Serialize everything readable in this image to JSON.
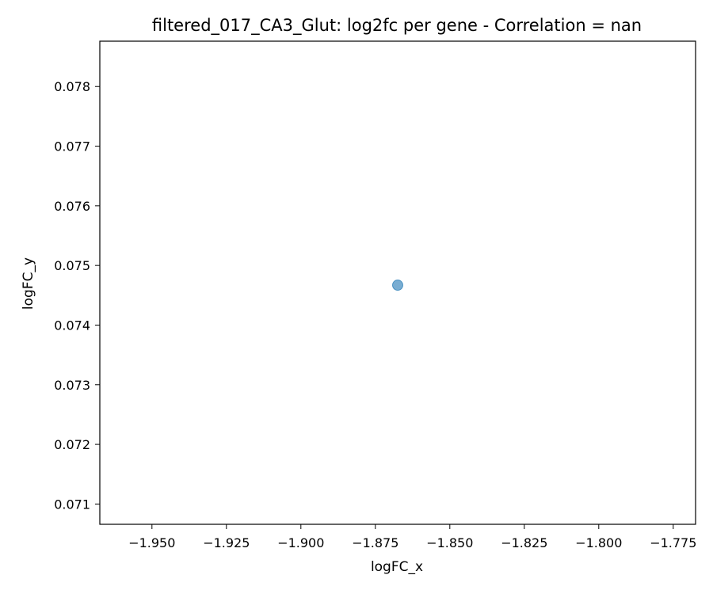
{
  "chart_data": {
    "type": "scatter",
    "title": "filtered_017_CA3_Glut: log2fc per gene - Correlation = nan",
    "xlabel": "logFC_x",
    "ylabel": "logFC_y",
    "xlim": [
      -1.9675,
      -1.7675
    ],
    "ylim": [
      0.07066,
      0.07876
    ],
    "x_ticks": [
      -1.95,
      -1.925,
      -1.9,
      -1.875,
      -1.85,
      -1.825,
      -1.8,
      -1.775
    ],
    "x_tick_labels": [
      "−1.950",
      "−1.925",
      "−1.900",
      "−1.875",
      "−1.850",
      "−1.825",
      "−1.800",
      "−1.775"
    ],
    "y_ticks": [
      0.071,
      0.072,
      0.073,
      0.074,
      0.075,
      0.076,
      0.077,
      0.078
    ],
    "y_tick_labels": [
      "0.071",
      "0.072",
      "0.073",
      "0.074",
      "0.075",
      "0.076",
      "0.077",
      "0.078"
    ],
    "grid": false,
    "points": [
      {
        "x": -1.8675,
        "y": 0.07467
      }
    ],
    "colors": {
      "point": "#1f77b4",
      "axes": "#000000",
      "background": "#ffffff"
    }
  }
}
